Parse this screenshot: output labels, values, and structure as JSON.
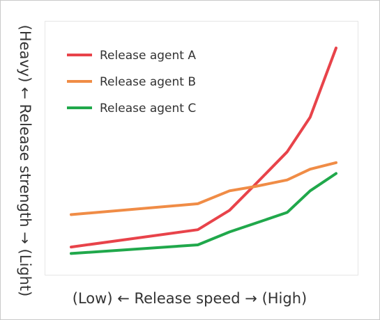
{
  "chart_data": {
    "type": "line",
    "xlabel": "(Low) ← Release speed → (High)",
    "ylabel": "(Heavy) ← Release strength → (Light)",
    "xlim": [
      0,
      100
    ],
    "ylim": [
      0,
      100
    ],
    "grid": false,
    "legend_position": "top-left",
    "series": [
      {
        "name": "Release agent A",
        "color": "#e8434a",
        "x": [
          0,
          44,
          55,
          64,
          75,
          83,
          92
        ],
        "y": [
          8,
          16,
          25,
          37,
          52,
          68,
          100
        ]
      },
      {
        "name": "Release agent B",
        "color": "#f08c46",
        "x": [
          0,
          44,
          55,
          64,
          75,
          83,
          92
        ],
        "y": [
          23,
          28,
          34,
          36,
          39,
          44,
          47
        ]
      },
      {
        "name": "Release agent C",
        "color": "#20a84b",
        "x": [
          0,
          44,
          55,
          64,
          75,
          83,
          92
        ],
        "y": [
          5,
          9,
          15,
          19,
          24,
          34,
          42
        ]
      }
    ]
  }
}
